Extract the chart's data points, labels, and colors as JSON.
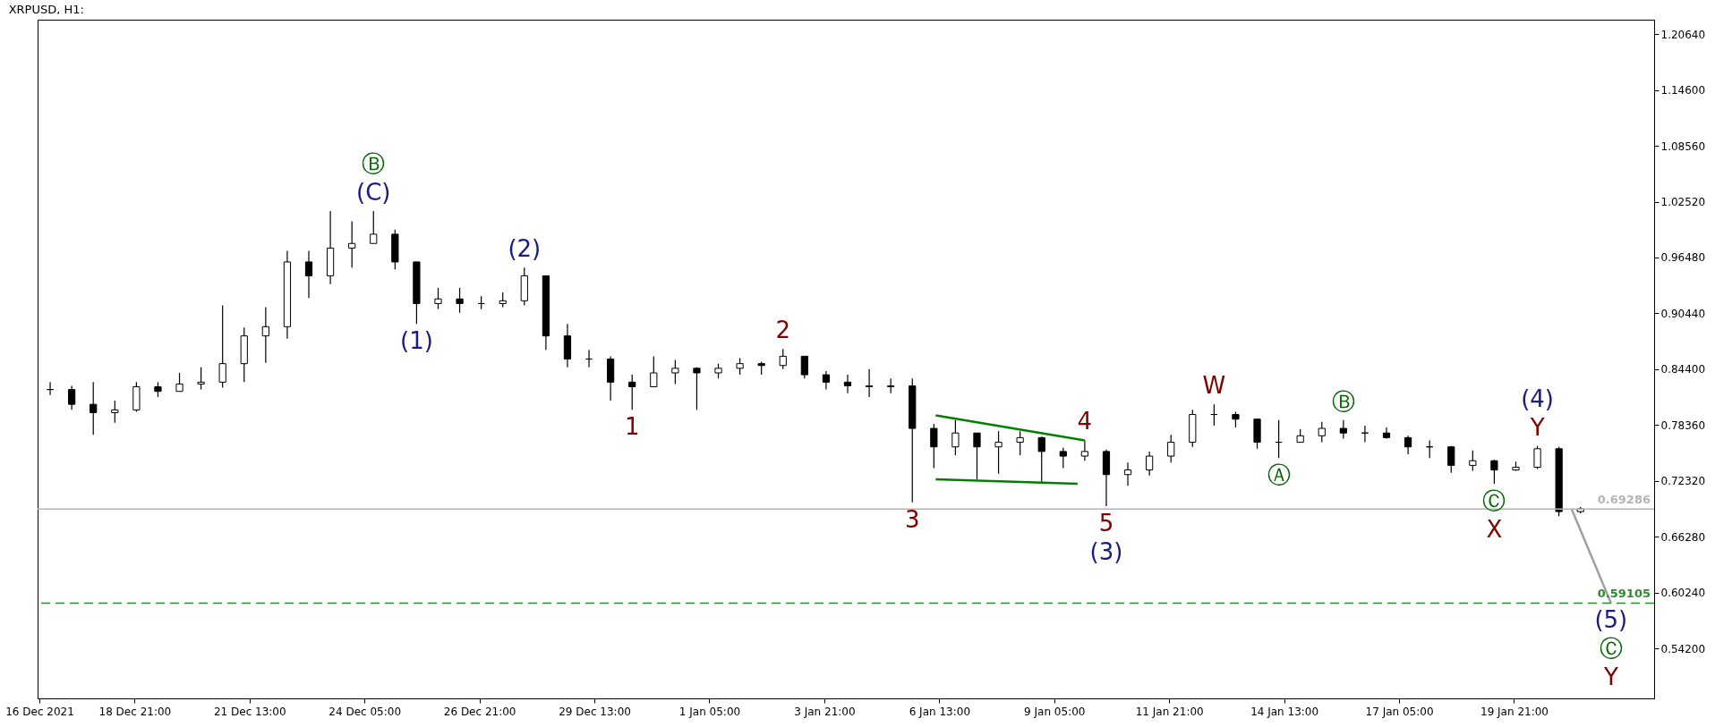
{
  "chart_data": {
    "type": "candlestick",
    "title": "XRPUSD, H1:",
    "series": [
      {
        "color": "#000000",
        "x": [
          "2021-12-16T22:00",
          "2021-12-17T10:00",
          "2021-12-17T22:00",
          "2021-12-18T10:00",
          "2021-12-18T22:00",
          "2021-12-19T10:00",
          "2021-12-19T22:00",
          "2021-12-20T10:00",
          "2021-12-20T22:00",
          "2021-12-21T10:00",
          "2021-12-21T22:00",
          "2021-12-22T10:00",
          "2021-12-22T22:00",
          "2021-12-23T10:00",
          "2021-12-23T22:00",
          "2021-12-24T10:00",
          "2021-12-24T22:00",
          "2021-12-25T10:00",
          "2021-12-25T22:00",
          "2021-12-26T10:00",
          "2021-12-26T22:00",
          "2021-12-27T10:00",
          "2021-12-27T22:00",
          "2021-12-28T10:00",
          "2021-12-28T22:00",
          "2021-12-29T10:00",
          "2021-12-29T22:00",
          "2021-12-30T10:00",
          "2021-12-30T22:00",
          "2021-12-31T10:00",
          "2021-12-31T22:00",
          "2022-01-01T10:00",
          "2022-01-01T22:00",
          "2022-01-02T10:00",
          "2022-01-02T22:00",
          "2022-01-03T10:00",
          "2022-01-03T22:00",
          "2022-01-04T10:00",
          "2022-01-04T22:00",
          "2022-01-05T10:00",
          "2022-01-05T22:00",
          "2022-01-06T10:00",
          "2022-01-06T22:00",
          "2022-01-07T10:00",
          "2022-01-07T22:00",
          "2022-01-08T10:00",
          "2022-01-08T22:00",
          "2022-01-09T10:00",
          "2022-01-09T22:00",
          "2022-01-10T10:00",
          "2022-01-10T22:00",
          "2022-01-11T10:00",
          "2022-01-11T22:00",
          "2022-01-12T10:00",
          "2022-01-12T22:00",
          "2022-01-13T10:00",
          "2022-01-13T22:00",
          "2022-01-14T10:00",
          "2022-01-14T22:00",
          "2022-01-15T10:00",
          "2022-01-15T22:00",
          "2022-01-16T10:00",
          "2022-01-16T22:00",
          "2022-01-17T10:00",
          "2022-01-17T22:00",
          "2022-01-18T10:00",
          "2022-01-18T22:00",
          "2022-01-19T10:00",
          "2022-01-19T22:00",
          "2022-01-20T10:00",
          "2022-01-20T22:00",
          "2022-01-21T10:00"
        ],
        "ohlc": [
          [
            0.822,
            0.83,
            0.816,
            0.822
          ],
          [
            0.822,
            0.826,
            0.8,
            0.806
          ],
          [
            0.806,
            0.83,
            0.773,
            0.797
          ],
          [
            0.797,
            0.81,
            0.786,
            0.8
          ],
          [
            0.8,
            0.83,
            0.798,
            0.825
          ],
          [
            0.825,
            0.83,
            0.814,
            0.82
          ],
          [
            0.82,
            0.84,
            0.82,
            0.828
          ],
          [
            0.828,
            0.846,
            0.822,
            0.83
          ],
          [
            0.83,
            0.913,
            0.824,
            0.85
          ],
          [
            0.85,
            0.889,
            0.83,
            0.88
          ],
          [
            0.88,
            0.911,
            0.851,
            0.89
          ],
          [
            0.89,
            0.972,
            0.877,
            0.96
          ],
          [
            0.96,
            0.972,
            0.921,
            0.945
          ],
          [
            0.945,
            1.015,
            0.936,
            0.975
          ],
          [
            0.975,
            1.004,
            0.954,
            0.98
          ],
          [
            0.98,
            1.015,
            0.98,
            0.99
          ],
          [
            0.99,
            0.995,
            0.952,
            0.96
          ],
          [
            0.96,
            0.96,
            0.893,
            0.915
          ],
          [
            0.915,
            0.932,
            0.909,
            0.92
          ],
          [
            0.92,
            0.932,
            0.905,
            0.915
          ],
          [
            0.915,
            0.923,
            0.909,
            0.915
          ],
          [
            0.915,
            0.927,
            0.911,
            0.918
          ],
          [
            0.918,
            0.954,
            0.913,
            0.945
          ],
          [
            0.945,
            0.945,
            0.865,
            0.88
          ],
          [
            0.88,
            0.893,
            0.846,
            0.855
          ],
          [
            0.855,
            0.865,
            0.846,
            0.855
          ],
          [
            0.855,
            0.858,
            0.81,
            0.83
          ],
          [
            0.83,
            0.838,
            0.8,
            0.825
          ],
          [
            0.825,
            0.858,
            0.825,
            0.84
          ],
          [
            0.84,
            0.854,
            0.828,
            0.845
          ],
          [
            0.845,
            0.846,
            0.8,
            0.84
          ],
          [
            0.84,
            0.85,
            0.834,
            0.845
          ],
          [
            0.845,
            0.856,
            0.838,
            0.85
          ],
          [
            0.85,
            0.852,
            0.838,
            0.848
          ],
          [
            0.848,
            0.866,
            0.844,
            0.858
          ],
          [
            0.858,
            0.858,
            0.834,
            0.838
          ],
          [
            0.838,
            0.842,
            0.822,
            0.83
          ],
          [
            0.83,
            0.838,
            0.818,
            0.826
          ],
          [
            0.826,
            0.844,
            0.814,
            0.825
          ],
          [
            0.825,
            0.834,
            0.818,
            0.826
          ],
          [
            0.826,
            0.834,
            0.7,
            0.78
          ],
          [
            0.78,
            0.785,
            0.737,
            0.76
          ],
          [
            0.76,
            0.789,
            0.751,
            0.775
          ],
          [
            0.775,
            0.775,
            0.725,
            0.76
          ],
          [
            0.76,
            0.777,
            0.731,
            0.765
          ],
          [
            0.765,
            0.777,
            0.751,
            0.77
          ],
          [
            0.77,
            0.771,
            0.721,
            0.755
          ],
          [
            0.755,
            0.759,
            0.737,
            0.75
          ],
          [
            0.75,
            0.767,
            0.745,
            0.755
          ],
          [
            0.755,
            0.757,
            0.696,
            0.73
          ],
          [
            0.73,
            0.743,
            0.718,
            0.735
          ],
          [
            0.735,
            0.755,
            0.729,
            0.75
          ],
          [
            0.75,
            0.773,
            0.743,
            0.765
          ],
          [
            0.765,
            0.8,
            0.76,
            0.795
          ],
          [
            0.795,
            0.806,
            0.783,
            0.795
          ],
          [
            0.795,
            0.798,
            0.781,
            0.79
          ],
          [
            0.79,
            0.79,
            0.758,
            0.765
          ],
          [
            0.765,
            0.789,
            0.748,
            0.765
          ],
          [
            0.765,
            0.779,
            0.765,
            0.772
          ],
          [
            0.772,
            0.787,
            0.765,
            0.78
          ],
          [
            0.78,
            0.789,
            0.769,
            0.775
          ],
          [
            0.775,
            0.783,
            0.765,
            0.775
          ],
          [
            0.775,
            0.781,
            0.769,
            0.77
          ],
          [
            0.77,
            0.772,
            0.752,
            0.76
          ],
          [
            0.76,
            0.767,
            0.748,
            0.76
          ],
          [
            0.76,
            0.761,
            0.732,
            0.74
          ],
          [
            0.74,
            0.756,
            0.734,
            0.745
          ],
          [
            0.745,
            0.746,
            0.72,
            0.735
          ],
          [
            0.735,
            0.744,
            0.734,
            0.738
          ],
          [
            0.738,
            0.761,
            0.736,
            0.758
          ],
          [
            0.758,
            0.76,
            0.685,
            0.69
          ],
          [
            0.69,
            0.695,
            0.688,
            0.693
          ]
        ]
      },
      {
        "type": "line",
        "color": "#a0a0a0",
        "x": [
          "2022-01-21T05:00",
          "2022-01-22T03:00"
        ],
        "values": [
          0.693,
          0.591
        ]
      },
      {
        "type": "line",
        "color": "#008000",
        "x": [
          "2022-01-06T11:00",
          "2022-01-09T22:00"
        ],
        "values": [
          0.794,
          0.767
        ]
      },
      {
        "type": "line",
        "color": "#008000",
        "x": [
          "2022-01-06T11:00",
          "2022-01-09T18:00"
        ],
        "values": [
          0.725,
          0.72
        ]
      }
    ],
    "xlim": [
      "2021-12-16T15:00",
      "2022-01-23T03:00"
    ],
    "xticks": [
      {
        "value": "2021-12-16T16:00",
        "label": "16 Dec 2021"
      },
      {
        "value": "2021-12-18T21:00",
        "label": "18 Dec 21:00"
      },
      {
        "value": "2021-12-21T13:00",
        "label": "21 Dec 13:00"
      },
      {
        "value": "2021-12-24T05:00",
        "label": "24 Dec 05:00"
      },
      {
        "value": "2021-12-26T21:00",
        "label": "26 Dec 21:00"
      },
      {
        "value": "2021-12-29T13:00",
        "label": "29 Dec 13:00"
      },
      {
        "value": "2022-01-01T05:00",
        "label": "1 Jan 05:00"
      },
      {
        "value": "2022-01-03T21:00",
        "label": "3 Jan 21:00"
      },
      {
        "value": "2022-01-06T13:00",
        "label": "6 Jan 13:00"
      },
      {
        "value": "2022-01-09T05:00",
        "label": "9 Jan 05:00"
      },
      {
        "value": "2022-01-11T21:00",
        "label": "11 Jan 21:00"
      },
      {
        "value": "2022-01-14T13:00",
        "label": "14 Jan 13:00"
      },
      {
        "value": "2022-01-17T05:00",
        "label": "17 Jan 05:00"
      },
      {
        "value": "2022-01-19T21:00",
        "label": "19 Jan 21:00"
      }
    ],
    "ylim": [
      0.488,
      1.222
    ],
    "yticks": [
      {
        "value": 0.542,
        "label": "0.54200"
      },
      {
        "value": 0.6024,
        "label": "0.60240"
      },
      {
        "value": 0.6628,
        "label": "0.66280"
      },
      {
        "value": 0.7232,
        "label": "0.72320"
      },
      {
        "value": 0.7836,
        "label": "0.78360"
      },
      {
        "value": 0.844,
        "label": "0.84400"
      },
      {
        "value": 0.9044,
        "label": "0.90440"
      },
      {
        "value": 0.9648,
        "label": "0.96480"
      },
      {
        "value": 1.0252,
        "label": "1.02520"
      },
      {
        "value": 1.0856,
        "label": "1.08560"
      },
      {
        "value": 1.146,
        "label": "1.14600"
      },
      {
        "value": 1.2064,
        "label": "1.20640"
      }
    ],
    "ref_lines": [
      {
        "axis": "y",
        "value": 0.69286,
        "label": "0.69286",
        "color": "#b4b4b4",
        "line_style": "solid"
      },
      {
        "axis": "y",
        "value": 0.59105,
        "label": "0.59105",
        "color": "#2e8b2e",
        "line_style": "dashed"
      }
    ],
    "annotations": [
      {
        "text": "(C)",
        "x": "2021-12-24T10:00",
        "y": 1.015
      },
      {
        "text": "Ⓑ",
        "x": "2021-12-24T10:00",
        "y": 1.015
      },
      {
        "text": "(1)",
        "x": "2021-12-25T10:00",
        "y": 0.893
      },
      {
        "text": "(2)",
        "x": "2021-12-27T22:00",
        "y": 0.954
      },
      {
        "text": "1",
        "x": "2021-12-30T10:00",
        "y": 0.8
      },
      {
        "text": "2",
        "x": "2022-01-02T22:00",
        "y": 0.866
      },
      {
        "text": "3",
        "x": "2022-01-05T22:00",
        "y": 0.7
      },
      {
        "text": "4",
        "x": "2022-01-09T22:00",
        "y": 0.767
      },
      {
        "text": "5",
        "x": "2022-01-10T10:00",
        "y": 0.696
      },
      {
        "text": "(3)",
        "x": "2022-01-10T10:00",
        "y": 0.696
      },
      {
        "text": "W",
        "x": "2022-01-12T22:00",
        "y": 0.806
      },
      {
        "text": "Ⓐ",
        "x": "2022-01-14T10:00",
        "y": 0.748
      },
      {
        "text": "Ⓑ",
        "x": "2022-01-15T22:00",
        "y": 0.789
      },
      {
        "text": "Ⓒ",
        "x": "2022-01-19T10:00",
        "y": 0.72
      },
      {
        "text": "X",
        "x": "2022-01-19T10:00",
        "y": 0.72
      },
      {
        "text": "Y",
        "x": "2022-01-20T10:00",
        "y": 0.761
      },
      {
        "text": "(4)",
        "x": "2022-01-20T10:00",
        "y": 0.761
      },
      {
        "text": "(5)",
        "x": "2022-01-22T03:00",
        "y": 0.591
      },
      {
        "text": "Ⓒ",
        "x": "2022-01-22T03:00",
        "y": 0.591
      },
      {
        "text": "Y",
        "x": "2022-01-22T03:00",
        "y": 0.591
      }
    ],
    "grid": false
  }
}
